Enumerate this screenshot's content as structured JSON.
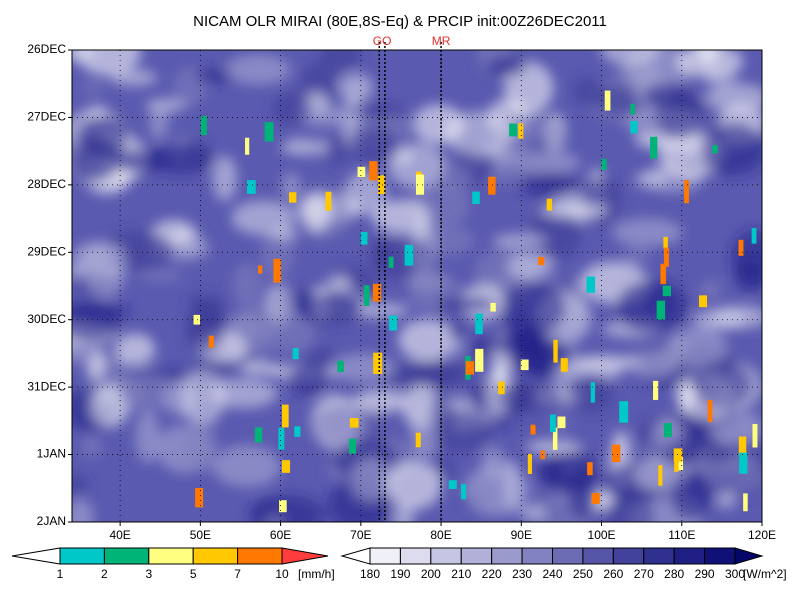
{
  "chart_data": {
    "type": "hovmoller",
    "title": "NICAM OLR MIRAI (80E,8S-Eq) & PRCIP init:00Z26DEC2011",
    "xlim": [
      34,
      120
    ],
    "xticks": [
      {
        "value": 40,
        "label": "40E"
      },
      {
        "value": 50,
        "label": "50E"
      },
      {
        "value": 60,
        "label": "60E"
      },
      {
        "value": 70,
        "label": "70E"
      },
      {
        "value": 80,
        "label": "80E"
      },
      {
        "value": 90,
        "label": "90E"
      },
      {
        "value": 100,
        "label": "100E"
      },
      {
        "value": 110,
        "label": "110E"
      },
      {
        "value": 120,
        "label": "120E"
      }
    ],
    "ylim": [
      7,
      0
    ],
    "yticks": [
      {
        "value": 0,
        "label": "26DEC"
      },
      {
        "value": 1,
        "label": "27DEC"
      },
      {
        "value": 2,
        "label": "28DEC"
      },
      {
        "value": 3,
        "label": "29DEC"
      },
      {
        "value": 4,
        "label": "30DEC"
      },
      {
        "value": 5,
        "label": "31DEC"
      },
      {
        "value": 6,
        "label": "1JAN"
      },
      {
        "value": 7,
        "label": "2JAN"
      }
    ],
    "grid": true,
    "markers": [
      {
        "label": "GO",
        "x": [
          72.3,
          73
        ]
      },
      {
        "label": "MR",
        "x": [
          80
        ]
      }
    ],
    "colorbars": [
      {
        "levels": [
          1,
          2,
          3,
          5,
          7,
          10
        ],
        "unit": "[mm/h]",
        "colors": [
          "#ffffff",
          "#00c8c8",
          "#00b478",
          "#ffff80",
          "#ffc800",
          "#ff7800",
          "#ff3c3c"
        ]
      },
      {
        "levels": [
          180,
          190,
          200,
          210,
          220,
          230,
          240,
          250,
          260,
          270,
          280,
          290,
          300
        ],
        "unit": "[W/m^2]",
        "colors": [
          "#ffffff",
          "#f0f0f8",
          "#dcdcee",
          "#c6c6e4",
          "#b0b0d8",
          "#9a9acc",
          "#8282c0",
          "#6c6cb4",
          "#5656a8",
          "#42429c",
          "#303090",
          "#1e1e84",
          "#101076",
          "#06066a"
        ]
      }
    ]
  }
}
